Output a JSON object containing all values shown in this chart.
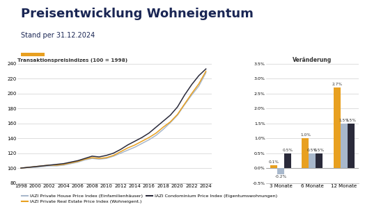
{
  "title": "Preisentwicklung Wohneigentum",
  "subtitle": "Stand per 31.12.2024",
  "title_color": "#1a2654",
  "left_title": "Transaktionspreisindizes (100 = 1998)",
  "right_title": "Veränderung",
  "years": [
    1998,
    1999,
    2000,
    2001,
    2002,
    2003,
    2004,
    2005,
    2006,
    2007,
    2008,
    2009,
    2010,
    2011,
    2012,
    2013,
    2014,
    2015,
    2016,
    2017,
    2018,
    2019,
    2020,
    2021,
    2022,
    2023,
    2024
  ],
  "house_index": [
    100,
    101,
    101,
    102,
    103,
    103,
    104,
    106,
    108,
    111,
    113,
    112,
    113,
    116,
    120,
    124,
    128,
    133,
    138,
    144,
    152,
    161,
    171,
    185,
    198,
    210,
    228
  ],
  "real_estate_index": [
    100,
    101,
    102,
    103,
    104,
    104,
    105,
    107,
    109,
    112,
    114,
    113,
    114,
    117,
    122,
    127,
    131,
    136,
    141,
    147,
    155,
    162,
    172,
    186,
    200,
    213,
    230
  ],
  "condo_index": [
    100,
    101,
    102,
    103,
    104,
    105,
    106,
    108,
    110,
    113,
    116,
    115,
    117,
    120,
    125,
    131,
    136,
    141,
    147,
    155,
    163,
    171,
    182,
    198,
    212,
    224,
    233
  ],
  "house_color": "#a8b8cc",
  "real_estate_color": "#e8a020",
  "condo_color": "#2a2a3a",
  "bar_categories": [
    "3 Monate",
    "6 Monate",
    "12 Monate"
  ],
  "bar_real_estate": [
    0.1,
    1.0,
    2.7
  ],
  "bar_house": [
    -0.2,
    0.5,
    1.5
  ],
  "bar_condo": [
    0.5,
    0.5,
    1.5
  ],
  "bar_real_estate_labels": [
    "0.1%",
    "1.0%",
    "2.7%"
  ],
  "bar_house_labels": [
    "-0.2%",
    "0.5%",
    "1.5%"
  ],
  "bar_condo_labels": [
    "0.5%",
    "0.5%",
    "1.5%"
  ],
  "ylim_left": [
    80,
    240
  ],
  "ylim_right": [
    -0.5,
    3.5
  ],
  "yticks_left": [
    80,
    100,
    120,
    140,
    160,
    180,
    200,
    220,
    240
  ],
  "yticks_right": [
    -0.5,
    0.0,
    0.5,
    1.0,
    1.5,
    2.0,
    2.5,
    3.0,
    3.5
  ],
  "accent_color": "#e8a020",
  "xticks": [
    1998,
    2000,
    2002,
    2004,
    2006,
    2008,
    2010,
    2012,
    2014,
    2016,
    2018,
    2020,
    2022,
    2024
  ],
  "xtick_labels": [
    "1998",
    "2000",
    "2002",
    "2004",
    "2006",
    "2008",
    "2010",
    "2012",
    "2014",
    "2016",
    "2018",
    "2020",
    "2022",
    "2024"
  ]
}
